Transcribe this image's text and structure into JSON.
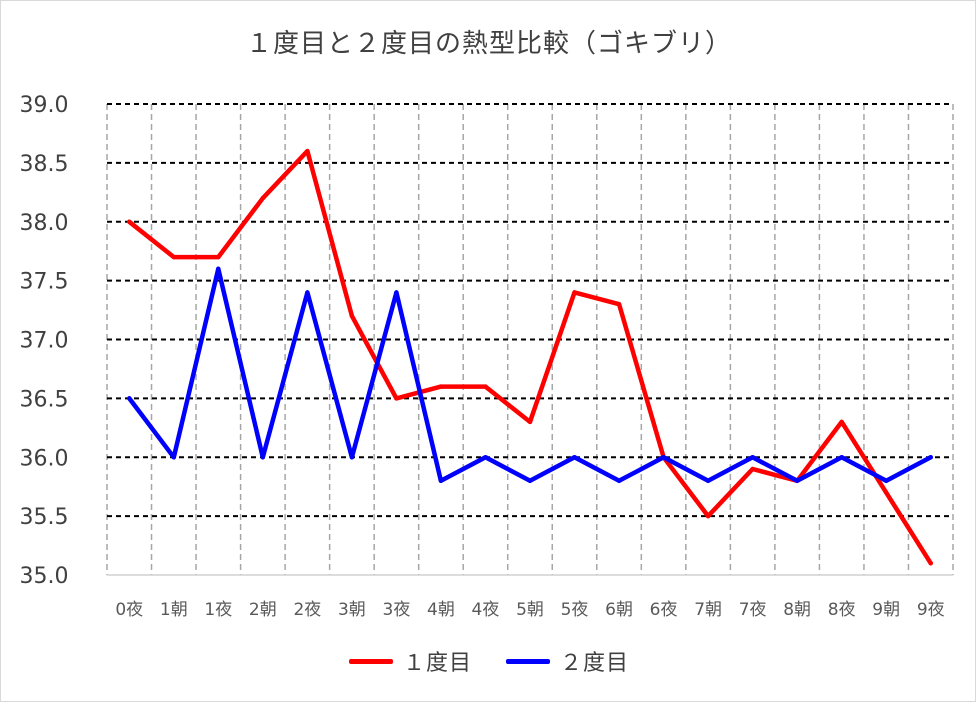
{
  "chart_data": {
    "type": "line",
    "title": "１度目と２度目の熱型比較（ゴキブリ）",
    "categories": [
      "0夜",
      "1朝",
      "1夜",
      "2朝",
      "2夜",
      "3朝",
      "3夜",
      "4朝",
      "4夜",
      "5朝",
      "5夜",
      "6朝",
      "6夜",
      "7朝",
      "7夜",
      "8朝",
      "8夜",
      "9朝",
      "9夜"
    ],
    "ylim": [
      35.0,
      39.0
    ],
    "yticks": [
      "35.0",
      "35.5",
      "36.0",
      "36.5",
      "37.0",
      "37.5",
      "38.0",
      "38.5",
      "39.0"
    ],
    "grid": true,
    "legend_position": "bottom",
    "series": [
      {
        "name": "１度目",
        "color": "#ff0000",
        "values": [
          38.0,
          37.7,
          37.7,
          38.2,
          38.6,
          37.2,
          36.5,
          36.6,
          36.6,
          36.3,
          37.4,
          37.3,
          36.0,
          35.5,
          35.9,
          35.8,
          36.3,
          35.7,
          35.1
        ]
      },
      {
        "name": "２度目",
        "color": "#0000ff",
        "values": [
          36.5,
          36.0,
          37.6,
          36.0,
          37.4,
          36.0,
          37.4,
          35.8,
          36.0,
          35.8,
          36.0,
          35.8,
          36.0,
          35.8,
          36.0,
          35.8,
          36.0,
          35.8,
          36.0
        ]
      }
    ]
  }
}
